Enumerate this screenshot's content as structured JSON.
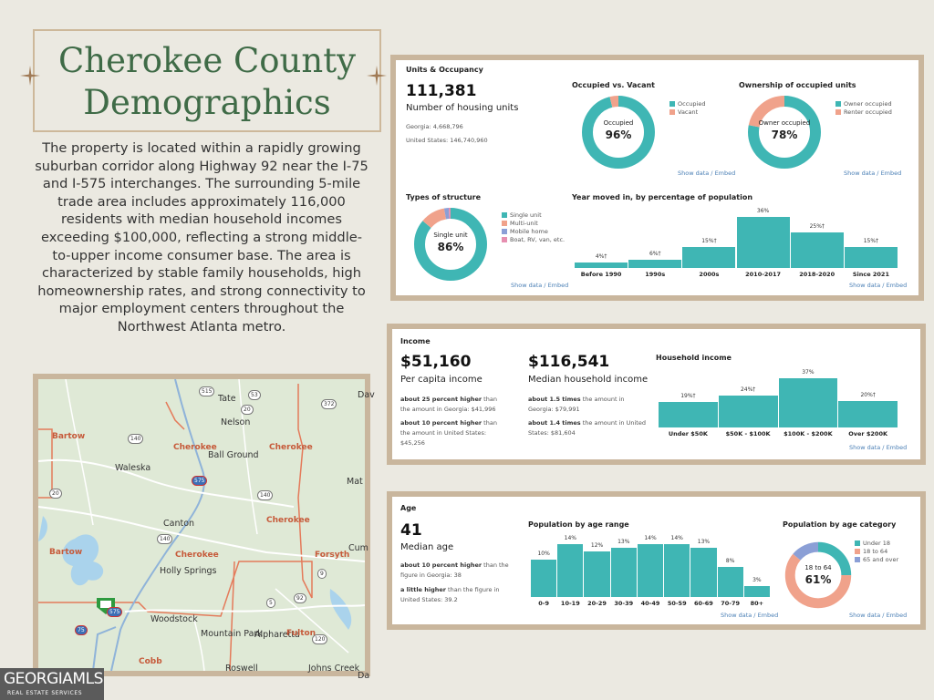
{
  "title": {
    "line1": "Cherokee County",
    "line2": "Demographics"
  },
  "intro": "The property is located within a rapidly growing suburban corridor along Highway 92 near the I-75 and I-575 interchanges. The surrounding 5-mile trade area includes approximately 116,000 residents with median household incomes exceeding $100,000, reflecting a strong middle-to-upper income consumer base. The area is characterized by stable family households, high homeownership rates, and strong connectivity to major employment centers throughout the Northwest Atlanta metro.",
  "map": {
    "labels": [
      "Tate",
      "Nelson",
      "Bartow",
      "Cherokee",
      "Ball Ground",
      "Cherokee",
      "Waleska",
      "Canton",
      "Cherokee",
      "Bartow",
      "Cherokee",
      "Holly Springs",
      "Forsyth",
      "Woodstock",
      "Mountain Park",
      "Alpharetta",
      "Fulton",
      "Cobb",
      "Roswell",
      "Johns Creek",
      "Dav",
      "Mat",
      "Cum",
      "Da"
    ],
    "shields": [
      "515",
      "53",
      "20",
      "372",
      "140",
      "575",
      "20",
      "140",
      "140",
      "9",
      "575",
      "75",
      "92",
      "5",
      "120"
    ]
  },
  "logo": {
    "name": "GEORGIAMLS",
    "tagline": "REAL ESTATE SERVICES"
  },
  "units": {
    "header": "Units & Occupancy",
    "total": "111,381",
    "total_label": "Number of housing units",
    "georgia": "Georgia: 4,668,796",
    "us": "United States: 146,740,960",
    "occ_title": "Occupied vs. Vacant",
    "occ_center_label": "Occupied",
    "occ_center_value": "96%",
    "occ_legend": [
      "Occupied",
      "Vacant"
    ],
    "own_title": "Ownership of occupied units",
    "own_center_label": "Owner occupied",
    "own_center_value": "78%",
    "own_legend": [
      "Owner occupied",
      "Renter occupied"
    ],
    "show_data": "Show data / Embed",
    "types_title": "Types of structure",
    "types_center_label": "Single unit",
    "types_center_value": "86%",
    "types_legend": [
      "Single unit",
      "Multi-unit",
      "Mobile home",
      "Boat, RV, van, etc."
    ],
    "moved_title": "Year moved in, by percentage of population"
  },
  "income": {
    "header": "Income",
    "per_capita": "$51,160",
    "per_capita_label": "Per capita income",
    "pc_note1_b": "about 25 percent higher",
    "pc_note1": "than the amount in Georgia: $41,996",
    "pc_note2_b": "about 10 percent higher",
    "pc_note2": "than the amount in United States: $45,256",
    "median": "$116,541",
    "median_label": "Median household income",
    "mh_note1_b": "about 1.5 times",
    "mh_note1": "the amount in Georgia: $79,991",
    "mh_note2_b": "about 1.4 times",
    "mh_note2": "the amount in United States: $81,604",
    "hh_title": "Household income",
    "show_data": "Show data / Embed"
  },
  "age": {
    "header": "Age",
    "median": "41",
    "median_label": "Median age",
    "note1_b": "about 10 percent higher",
    "note1": "than the figure in Georgia: 38",
    "note2_b": "a little higher",
    "note2": "than the figure in United States: 39.2",
    "range_title": "Population by age range",
    "cat_title": "Population by age category",
    "cat_center_label": "18 to 64",
    "cat_center_value": "61%",
    "cat_legend": [
      "Under 18",
      "18 to 64",
      "65 and over"
    ],
    "show_data": "Show data / Embed"
  },
  "colors": {
    "teal": "#3fb6b4",
    "salmon": "#f0a28b",
    "blue": "#8b9fd6",
    "pink": "#e68fb0",
    "green": "#3f6b47"
  },
  "donuts": {
    "occupancy": [
      96,
      4
    ],
    "ownership": [
      78,
      22
    ],
    "structure": [
      86,
      11,
      2,
      1
    ],
    "age_category": [
      25,
      61,
      14
    ]
  },
  "chart_data": [
    {
      "type": "bar",
      "title": "Year moved in, by percentage of population",
      "categories": [
        "Before 1990",
        "1990s",
        "2000s",
        "2010-2017",
        "2018-2020",
        "Since 2021"
      ],
      "values": [
        4,
        6,
        15,
        36,
        25,
        15
      ],
      "labels": [
        "4%†",
        "6%†",
        "15%†",
        "36%",
        "25%†",
        "15%†"
      ],
      "ylim": [
        0,
        36
      ]
    },
    {
      "type": "bar",
      "title": "Household income",
      "categories": [
        "Under $50K",
        "$50K - $100K",
        "$100K - $200K",
        "Over $200K"
      ],
      "values": [
        19,
        24,
        37,
        20
      ],
      "labels": [
        "19%†",
        "24%†",
        "37%",
        "20%†"
      ],
      "ylim": [
        0,
        37
      ]
    },
    {
      "type": "bar",
      "title": "Population by age range",
      "categories": [
        "0-9",
        "10-19",
        "20-29",
        "30-39",
        "40-49",
        "50-59",
        "60-69",
        "70-79",
        "80+"
      ],
      "values": [
        10,
        14,
        12,
        13,
        14,
        14,
        13,
        8,
        3
      ],
      "labels": [
        "10%",
        "14%",
        "12%",
        "13%",
        "14%",
        "14%",
        "13%",
        "8%",
        "3%"
      ],
      "ylim": [
        0,
        14
      ]
    }
  ]
}
